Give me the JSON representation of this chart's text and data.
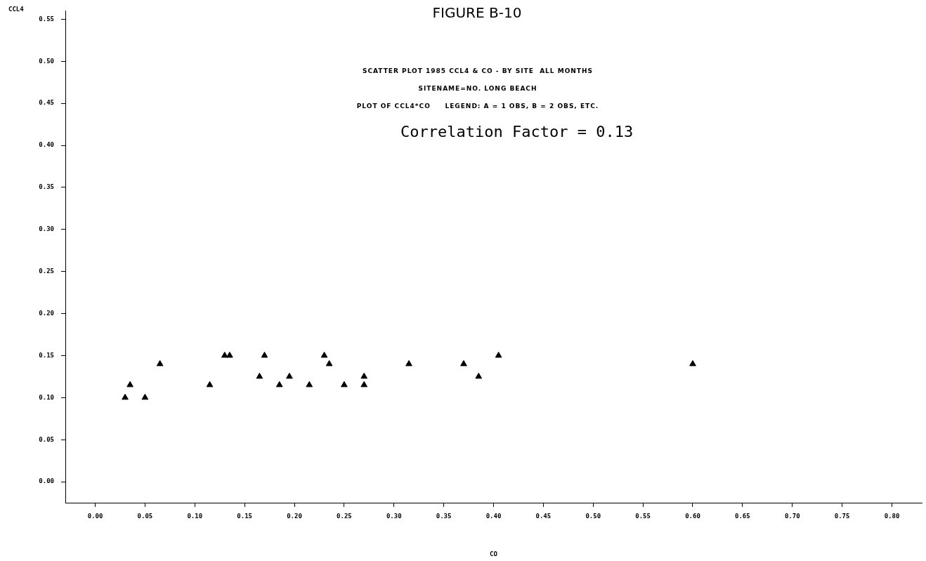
{
  "chart_data": {
    "type": "scatter",
    "title": "FIGURE B-10",
    "subtitle": "SCATTER PLOT 1985 CCL4 & CO - BY SITE  ALL MONTHS",
    "annotations": [
      "SITENAME=NO. LONG BEACH",
      "PLOT OF CCL4*CO     LEGEND: A = 1 OBS, B = 2 OBS, ETC.",
      "Correlation Factor = 0.13"
    ],
    "xlabel": "CO",
    "ylabel": "CCL4",
    "series": [
      {
        "color": "#000000",
        "x": [
          0.03,
          0.035,
          0.05,
          0.065,
          0.115,
          0.13,
          0.135,
          0.17,
          0.165,
          0.185,
          0.195,
          0.215,
          0.23,
          0.235,
          0.25,
          0.27,
          0.27,
          0.315,
          0.37,
          0.385,
          0.405,
          0.6
        ],
        "values": [
          0.1,
          0.115,
          0.1,
          0.14,
          0.115,
          0.15,
          0.15,
          0.15,
          0.125,
          0.115,
          0.125,
          0.115,
          0.15,
          0.14,
          0.115,
          0.125,
          0.115,
          0.14,
          0.14,
          0.125,
          0.15,
          0.14
        ]
      }
    ],
    "xlim": [
      -0.03,
      0.83
    ],
    "ylim": [
      -0.025,
      0.56
    ],
    "xticks": [
      {
        "value": 0,
        "label": "0.00"
      },
      {
        "value": 0.05,
        "label": "0.05"
      },
      {
        "value": 0.1,
        "label": "0.10"
      },
      {
        "value": 0.15,
        "label": "0.15"
      },
      {
        "value": 0.2,
        "label": "0.20"
      },
      {
        "value": 0.25,
        "label": "0.25"
      },
      {
        "value": 0.3,
        "label": "0.30"
      },
      {
        "value": 0.35,
        "label": "0.35"
      },
      {
        "value": 0.4,
        "label": "0.40"
      },
      {
        "value": 0.45,
        "label": "0.45"
      },
      {
        "value": 0.5,
        "label": "0.50"
      },
      {
        "value": 0.55,
        "label": "0.55"
      },
      {
        "value": 0.6,
        "label": "0.60"
      },
      {
        "value": 0.65,
        "label": "0.65"
      },
      {
        "value": 0.7,
        "label": "0.70"
      },
      {
        "value": 0.75,
        "label": "0.75"
      },
      {
        "value": 0.8,
        "label": "0.80"
      }
    ],
    "yticks": [
      {
        "value": 0,
        "label": "0.00"
      },
      {
        "value": 0.05,
        "label": "0.05"
      },
      {
        "value": 0.1,
        "label": "0.10"
      },
      {
        "value": 0.15,
        "label": "0.15"
      },
      {
        "value": 0.2,
        "label": "0.20"
      },
      {
        "value": 0.25,
        "label": "0.25"
      },
      {
        "value": 0.3,
        "label": "0.30"
      },
      {
        "value": 0.35,
        "label": "0.35"
      },
      {
        "value": 0.4,
        "label": "0.40"
      },
      {
        "value": 0.45,
        "label": "0.45"
      },
      {
        "value": 0.5,
        "label": "0.50"
      },
      {
        "value": 0.55,
        "label": "0.55"
      }
    ],
    "grid": false,
    "legend": false,
    "marker": "triangle"
  }
}
